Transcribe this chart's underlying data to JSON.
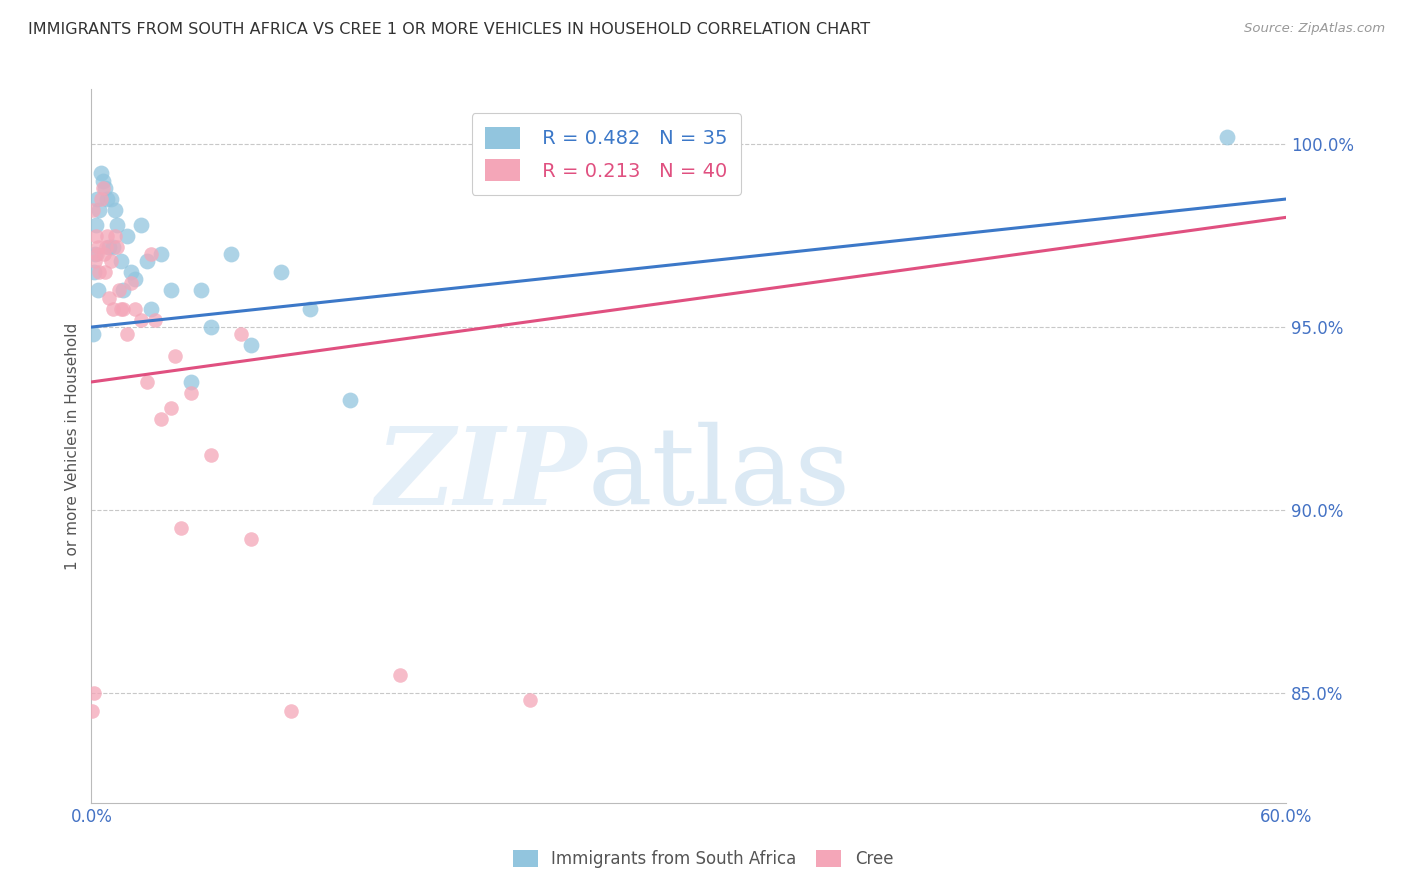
{
  "title": "IMMIGRANTS FROM SOUTH AFRICA VS CREE 1 OR MORE VEHICLES IN HOUSEHOLD CORRELATION CHART",
  "source": "Source: ZipAtlas.com",
  "ylabel": "1 or more Vehicles in Household",
  "xlim": [
    0.0,
    60.0
  ],
  "ylim": [
    82.0,
    101.5
  ],
  "yticks": [
    85.0,
    90.0,
    95.0,
    100.0
  ],
  "xticks": [
    0.0,
    10.0,
    20.0,
    30.0,
    40.0,
    50.0,
    60.0
  ],
  "xtick_labels": [
    "0.0%",
    "",
    "",
    "",
    "",
    "",
    "60.0%"
  ],
  "ytick_labels": [
    "85.0%",
    "90.0%",
    "95.0%",
    "100.0%"
  ],
  "blue_color": "#92c5de",
  "pink_color": "#f4a6b8",
  "blue_line_color": "#3c78c8",
  "pink_line_color": "#e05080",
  "axis_color": "#4472C4",
  "grid_color": "#c8c8c8",
  "legend_R_blue": "R = 0.482",
  "legend_N_blue": "N = 35",
  "legend_R_pink": "R = 0.213",
  "legend_N_pink": "N = 40",
  "blue_scatter_x": [
    0.1,
    0.15,
    0.2,
    0.25,
    0.3,
    0.35,
    0.4,
    0.5,
    0.6,
    0.7,
    0.8,
    0.9,
    1.0,
    1.1,
    1.2,
    1.3,
    1.5,
    1.6,
    1.8,
    2.0,
    2.2,
    2.5,
    2.8,
    3.0,
    3.5,
    4.0,
    5.0,
    5.5,
    6.0,
    7.0,
    8.0,
    9.5,
    11.0,
    13.0,
    57.0
  ],
  "blue_scatter_y": [
    94.8,
    96.5,
    97.0,
    97.8,
    98.5,
    96.0,
    98.2,
    99.2,
    99.0,
    98.8,
    98.5,
    97.2,
    98.5,
    97.2,
    98.2,
    97.8,
    96.8,
    96.0,
    97.5,
    96.5,
    96.3,
    97.8,
    96.8,
    95.5,
    97.0,
    96.0,
    93.5,
    96.0,
    95.0,
    97.0,
    94.5,
    96.5,
    95.5,
    93.0,
    100.2
  ],
  "pink_scatter_x": [
    0.05,
    0.1,
    0.15,
    0.2,
    0.25,
    0.3,
    0.35,
    0.4,
    0.5,
    0.6,
    0.65,
    0.7,
    0.75,
    0.8,
    0.9,
    1.0,
    1.1,
    1.2,
    1.3,
    1.4,
    1.5,
    1.6,
    1.8,
    2.0,
    2.2,
    2.5,
    2.8,
    3.0,
    3.2,
    3.5,
    4.0,
    4.2,
    4.5,
    5.0,
    6.0,
    7.5,
    8.0,
    10.0,
    15.5,
    22.0
  ],
  "pink_scatter_y": [
    84.5,
    98.2,
    85.0,
    96.8,
    97.5,
    97.0,
    97.2,
    96.5,
    98.5,
    98.8,
    97.0,
    96.5,
    97.2,
    97.5,
    95.8,
    96.8,
    95.5,
    97.5,
    97.2,
    96.0,
    95.5,
    95.5,
    94.8,
    96.2,
    95.5,
    95.2,
    93.5,
    97.0,
    95.2,
    92.5,
    92.8,
    94.2,
    89.5,
    93.2,
    91.5,
    94.8,
    89.2,
    84.5,
    85.5,
    84.8
  ],
  "blue_line_x0": 0.0,
  "blue_line_x1": 60.0,
  "blue_line_y0": 95.0,
  "blue_line_y1": 98.5,
  "pink_line_x0": 0.0,
  "pink_line_x1": 60.0,
  "pink_line_y0": 93.5,
  "pink_line_y1": 98.0,
  "blue_ext_x0": 15.0,
  "blue_ext_x1": 60.0,
  "pink_ext_x0": 8.0,
  "pink_ext_x1": 60.0
}
